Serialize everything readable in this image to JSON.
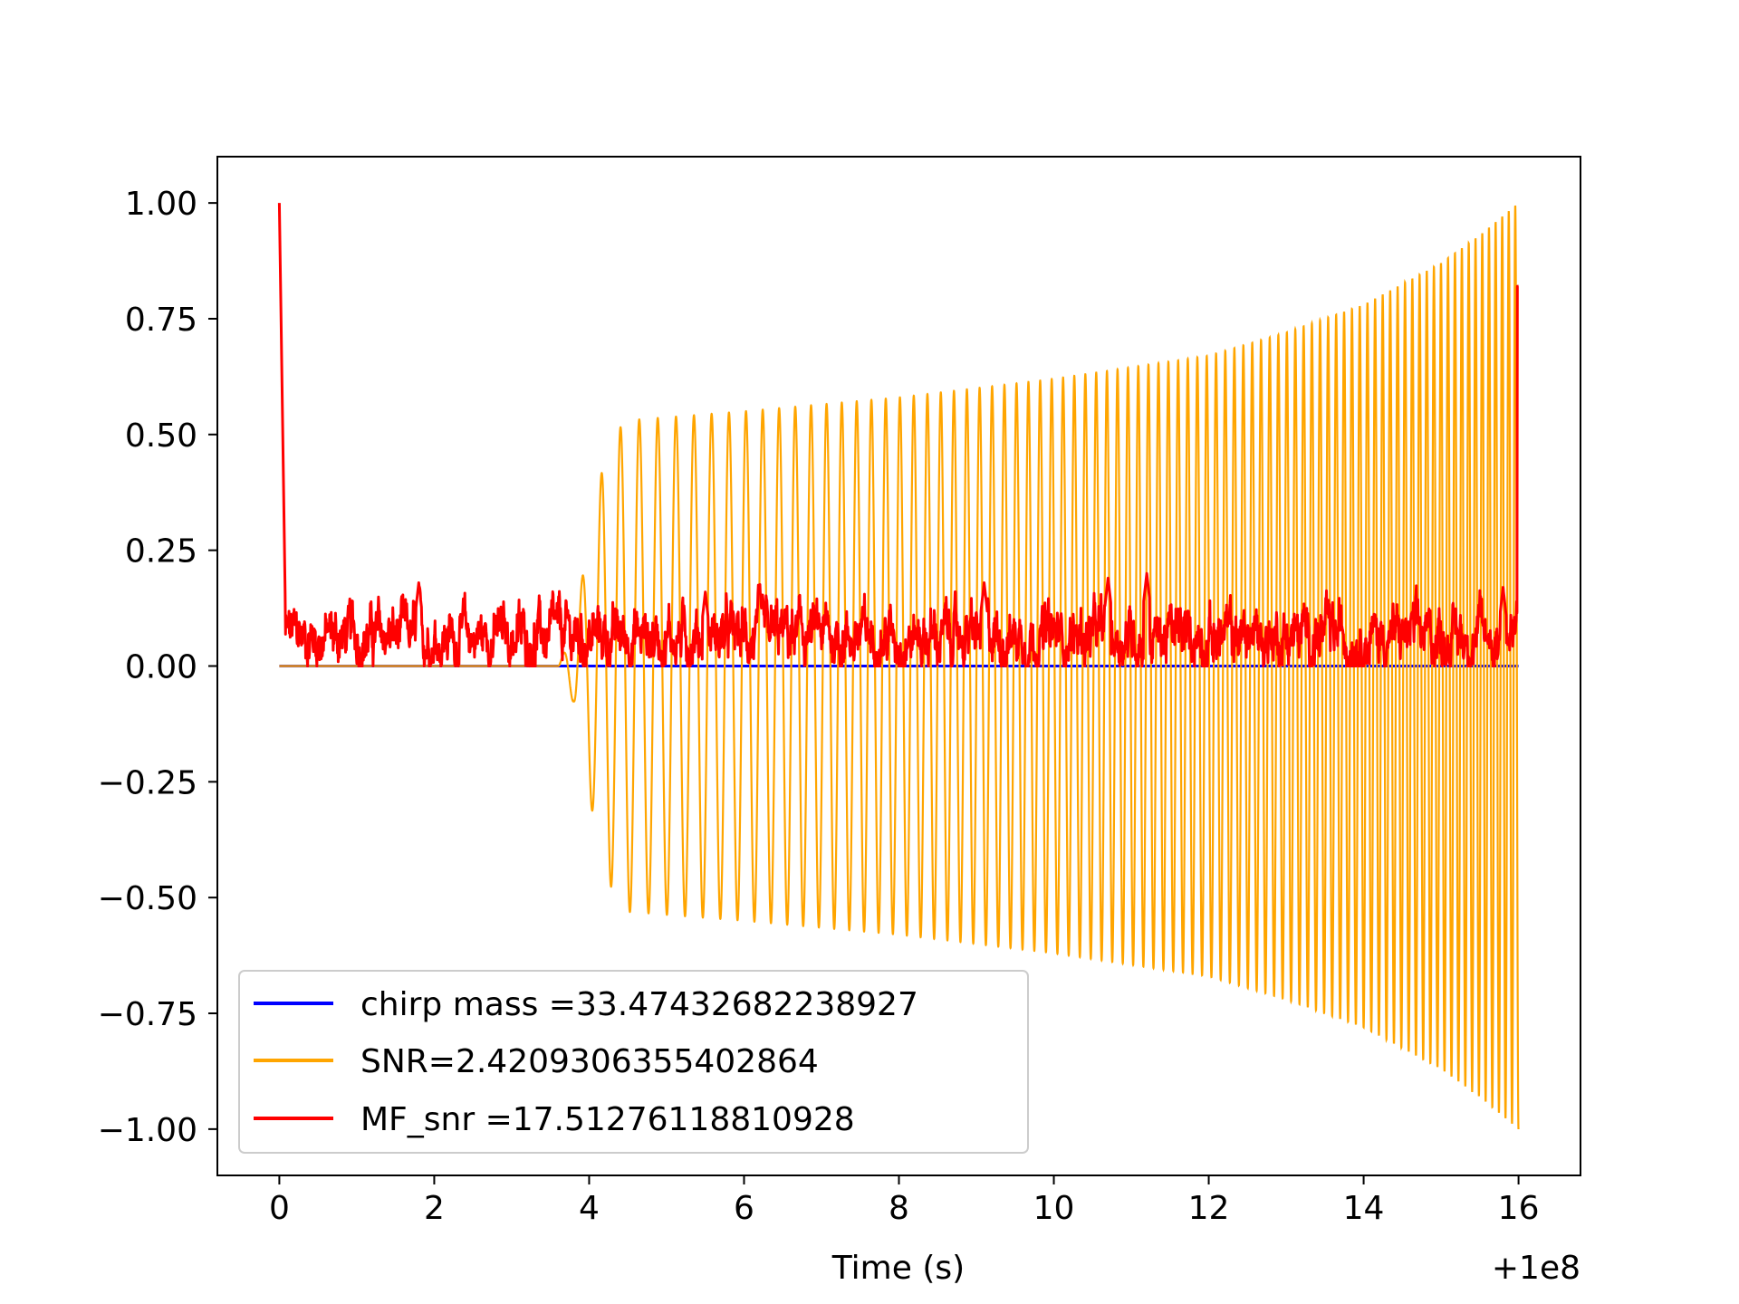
{
  "chart_data": {
    "type": "line",
    "title": "",
    "xlabel": "Time (s)",
    "ylabel": "",
    "x_offset_label": "+1e8",
    "xlim": [
      -0.8,
      16.8
    ],
    "ylim": [
      -1.1,
      1.1
    ],
    "x_ticks": [
      0,
      2,
      4,
      6,
      8,
      10,
      12,
      14,
      16
    ],
    "x_tick_labels": [
      "0",
      "2",
      "4",
      "6",
      "8",
      "10",
      "12",
      "14",
      "16"
    ],
    "y_ticks": [
      1.0,
      0.75,
      0.5,
      0.25,
      0.0,
      -0.25,
      -0.5,
      -0.75,
      -1.0
    ],
    "y_tick_labels": [
      "1.00",
      "0.75",
      "0.50",
      "0.25",
      "0.00",
      "−0.25",
      "−0.50",
      "−0.75",
      "−1.00"
    ],
    "grid": false,
    "legend_position": "lower-left",
    "series": [
      {
        "name": "chirp mass =33.47432682238927",
        "color": "#0000ff",
        "description": "normalized template waveform (drawn beneath the SNR trace)",
        "envelope_points": [
          [
            0,
            0
          ],
          [
            16,
            0
          ]
        ]
      },
      {
        "name": "SNR=2.4209306355402864",
        "color": "#ffa500",
        "description": "normalized chirp waveform: flat until ~3.6 s, then oscillating with growing amplitude and frequency",
        "t_start": 0,
        "t_onset": 3.6,
        "t_end": 16,
        "envelope_points": [
          [
            3.6,
            0.0
          ],
          [
            3.8,
            0.08
          ],
          [
            4.0,
            0.28
          ],
          [
            4.2,
            0.45
          ],
          [
            4.45,
            0.53
          ],
          [
            6,
            0.55
          ],
          [
            8,
            0.58
          ],
          [
            10,
            0.62
          ],
          [
            12,
            0.67
          ],
          [
            13,
            0.72
          ],
          [
            14,
            0.78
          ],
          [
            15,
            0.87
          ],
          [
            15.5,
            0.93
          ],
          [
            16,
            1.0
          ]
        ],
        "cycles_per_second_start": 4.0,
        "cycles_per_second_end": 12.0
      },
      {
        "name": "MF_snr =17.51276118810928",
        "color": "#ff0000",
        "description": "matched-filter output: spike to 1.0 at t=0, noisy baseline 0-0.2, spike to ~0.82 at t=16",
        "start_spike": 1.0,
        "end_spike": 0.82,
        "baseline_range": [
          0.0,
          0.2
        ],
        "notable_peaks": [
          [
            1.8,
            0.18
          ],
          [
            5.5,
            0.16
          ],
          [
            9.1,
            0.18
          ],
          [
            10.7,
            0.19
          ],
          [
            11.2,
            0.2
          ],
          [
            15.8,
            0.17
          ]
        ]
      }
    ]
  }
}
